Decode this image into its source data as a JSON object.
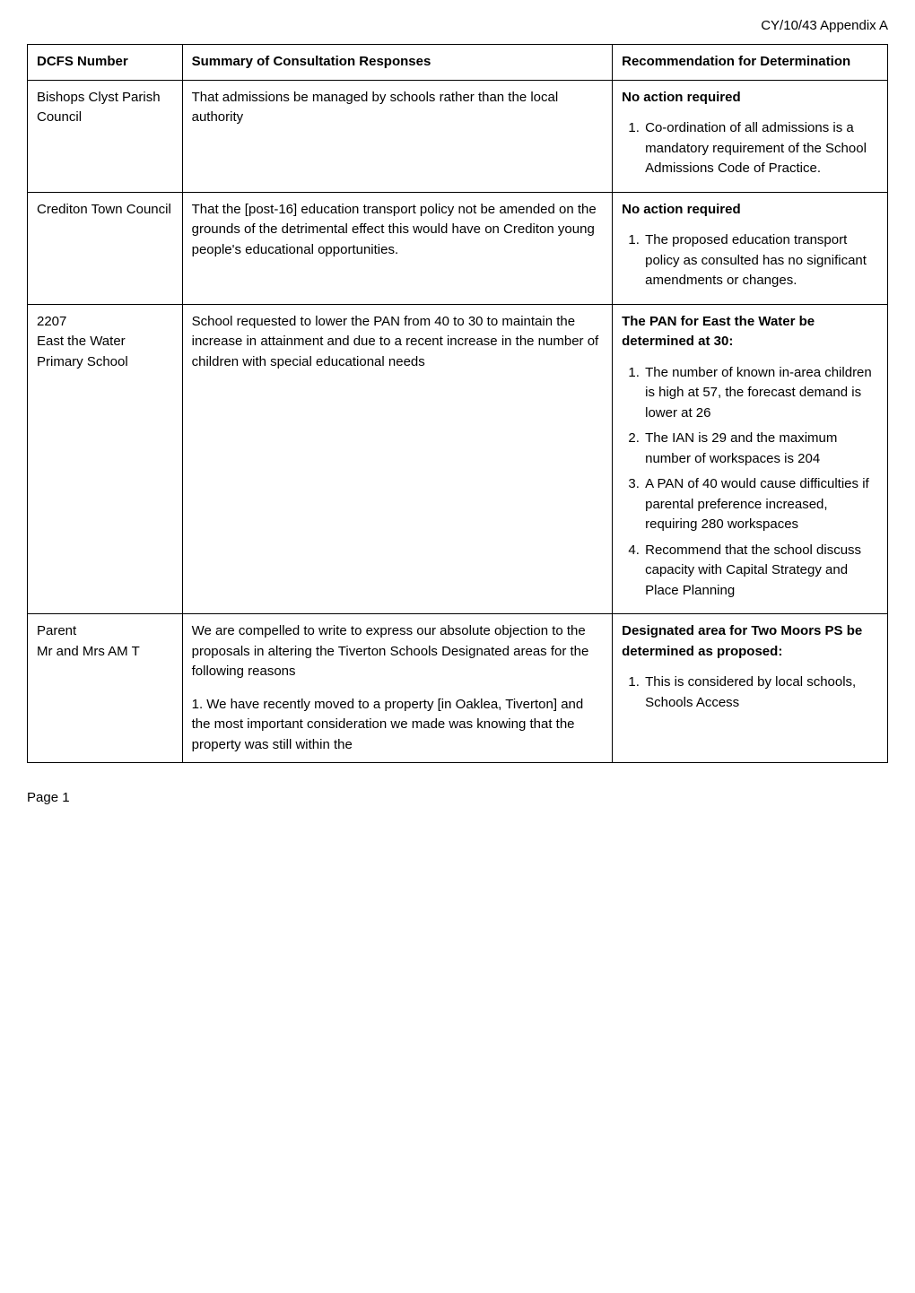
{
  "header": {
    "appendix_ref": "CY/10/43 Appendix A"
  },
  "table": {
    "headers": {
      "col1": "DCFS Number",
      "col2": "Summary of Consultation Responses",
      "col3": "Recommendation for Determination"
    },
    "rows": [
      {
        "dcfs": "Bishops Clyst Parish Council",
        "summary": "That admissions be managed by schools rather than the local authority",
        "rec_heading": "No action required",
        "rec_items": [
          "Co-ordination of all admissions is a mandatory requirement of the School Admissions Code of Practice."
        ]
      },
      {
        "dcfs": "Crediton Town Council",
        "summary": "That the [post-16] education transport policy not be amended on the grounds of the detrimental effect this would have on Crediton young people's educational opportunities.",
        "rec_heading": "No action required",
        "rec_items": [
          "The proposed education transport policy as consulted has no significant amendments or changes."
        ]
      },
      {
        "dcfs_line1": "2207",
        "dcfs_line2": "East the Water Primary School",
        "summary": "School requested to lower the PAN from 40 to 30 to maintain the increase in attainment and due to a recent increase in the number of children with special educational needs",
        "rec_heading": "The PAN for East the Water be determined at 30:",
        "rec_items": [
          "The number of known in-area children is high at 57, the forecast demand is lower at 26",
          "The IAN is 29 and the maximum number of workspaces is 204",
          "A PAN of 40 would cause difficulties if parental preference increased, requiring 280 workspaces",
          "Recommend that the school discuss capacity with Capital Strategy and Place Planning"
        ]
      },
      {
        "dcfs_line1": "Parent",
        "dcfs_line2": "Mr and Mrs AM T",
        "summary_p1": "We are compelled to write to express our absolute objection to the proposals in altering the Tiverton Schools Designated areas for the following reasons",
        "summary_p2": "1. We have recently moved to a property [in Oaklea, Tiverton] and the most important consideration we made was knowing that the property was still within the",
        "rec_heading": "Designated area for Two Moors PS be determined as proposed:",
        "rec_items": [
          "This is considered by local schools, Schools Access"
        ]
      }
    ]
  },
  "footer": {
    "page_label": "Page 1"
  }
}
